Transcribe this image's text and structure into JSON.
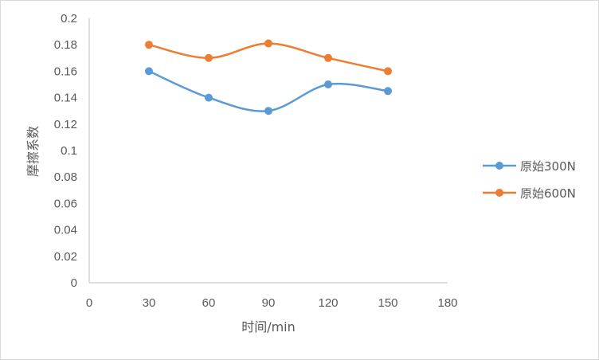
{
  "chart_data": {
    "type": "line",
    "title": "",
    "xlabel": "时间/min",
    "ylabel": "摩擦系数",
    "xlim": [
      0,
      180
    ],
    "ylim": [
      0,
      0.2
    ],
    "x_ticks": [
      "0",
      "30",
      "60",
      "90",
      "120",
      "150",
      "180"
    ],
    "y_ticks": [
      "0",
      "0.02",
      "0.04",
      "0.06",
      "0.08",
      "0.1",
      "0.12",
      "0.14",
      "0.16",
      "0.18",
      "0.2"
    ],
    "grid": false,
    "legend_position": "right",
    "smooth": true,
    "series": [
      {
        "name": "原始300N",
        "color": "#5b9bd5",
        "x": [
          30,
          60,
          90,
          120,
          150
        ],
        "y": [
          0.16,
          0.14,
          0.13,
          0.15,
          0.145
        ]
      },
      {
        "name": "原始600N",
        "color": "#ed7d31",
        "x": [
          30,
          60,
          90,
          120,
          150
        ],
        "y": [
          0.18,
          0.17,
          0.181,
          0.17,
          0.16
        ]
      }
    ]
  }
}
